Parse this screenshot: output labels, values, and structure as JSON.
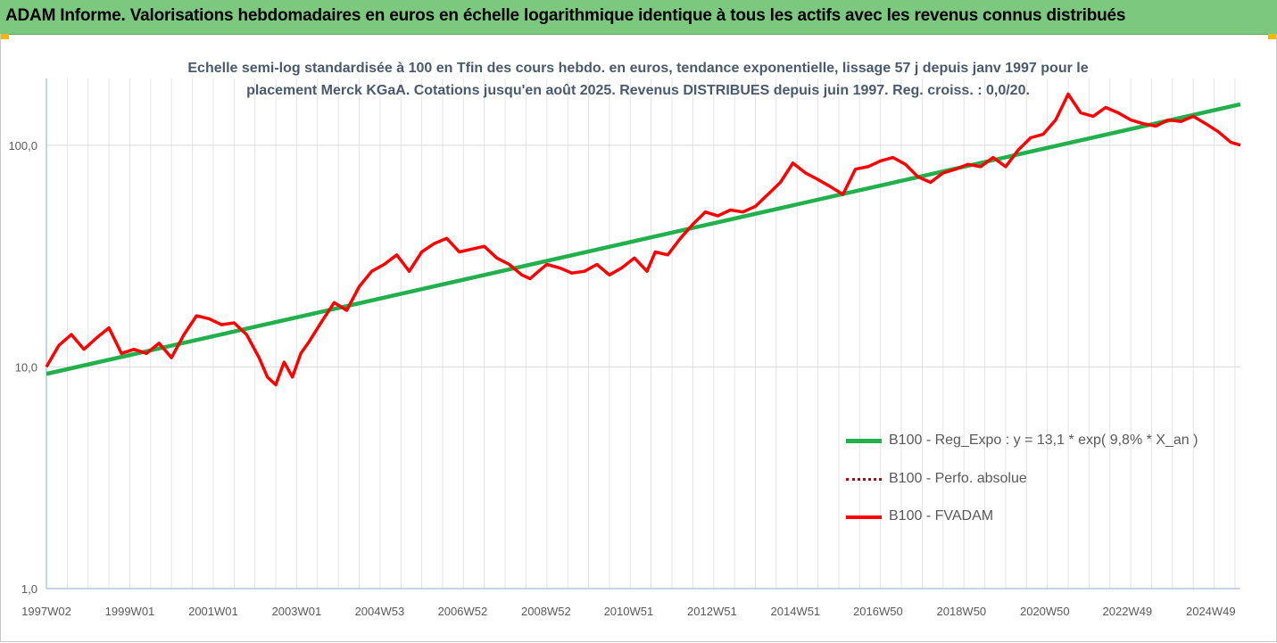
{
  "header": {
    "title": "ADAM Informe. Valorisations hebdomadaires en euros en échelle logarithmique identique à tous les actifs avec les revenus connus distribués"
  },
  "colors": {
    "banner": "#7dc87f",
    "corner_accent": "#f5b800",
    "regression": "#21b04b",
    "fvadam": "#ff0000",
    "perfo": "#c00000",
    "subtitle": "#4a5a6e",
    "grid": "#e3e3e3"
  },
  "chart_data": {
    "type": "line",
    "title_line1": "Echelle semi-log standardisée à 100 en Tfin des cours hebdo. en euros, tendance exponentielle, lissage 57 j depuis janv 1997 pour le",
    "title_line2": "placement Merck KGaA. Cotations jusqu'en août 2025. Revenus DISTRIBUES depuis juin 1997. Reg. croiss. : 0,0/20.",
    "y_scale": "log",
    "ylim": [
      1,
      200
    ],
    "y_ticks": [
      {
        "value": 1,
        "label": "1,0"
      },
      {
        "value": 10,
        "label": "10,0"
      },
      {
        "value": 100,
        "label": "100,0"
      }
    ],
    "xlim": [
      1997.0,
      2025.63
    ],
    "x_ticks": [
      {
        "value": 1997.0,
        "label": "1997W02"
      },
      {
        "value": 1999.0,
        "label": "1999W01"
      },
      {
        "value": 2001.0,
        "label": "2001W01"
      },
      {
        "value": 2003.0,
        "label": "2003W01"
      },
      {
        "value": 2004.99,
        "label": "2004W53"
      },
      {
        "value": 2006.98,
        "label": "2006W52"
      },
      {
        "value": 2008.98,
        "label": "2008W52"
      },
      {
        "value": 2010.96,
        "label": "2010W51"
      },
      {
        "value": 2012.96,
        "label": "2012W51"
      },
      {
        "value": 2014.96,
        "label": "2014W51"
      },
      {
        "value": 2016.94,
        "label": "2016W50"
      },
      {
        "value": 2018.94,
        "label": "2018W50"
      },
      {
        "value": 2020.94,
        "label": "2020W50"
      },
      {
        "value": 2022.92,
        "label": "2022W49"
      },
      {
        "value": 2024.92,
        "label": "2024W49"
      }
    ],
    "legend_position": "bottom-right",
    "series": [
      {
        "name": "B100 - Reg_Expo : y = 13,1 * exp( 9,8% *  X_an )",
        "style": "solid-thick",
        "x": [
          1997.0,
          2025.63
        ],
        "y": [
          9.3,
          153
        ]
      },
      {
        "name": "B100 - Perfo. absolue",
        "style": "dotted",
        "x": [],
        "y": []
      },
      {
        "name": "B100 - FVADAM",
        "style": "solid",
        "x": [
          1997.0,
          1997.3,
          1997.6,
          1997.9,
          1998.2,
          1998.5,
          1998.8,
          1999.1,
          1999.4,
          1999.7,
          2000.0,
          2000.3,
          2000.6,
          2000.9,
          2001.2,
          2001.5,
          2001.8,
          2002.1,
          2002.3,
          2002.5,
          2002.7,
          2002.9,
          2003.1,
          2003.3,
          2003.6,
          2003.9,
          2004.2,
          2004.5,
          2004.8,
          2005.1,
          2005.4,
          2005.7,
          2006.0,
          2006.3,
          2006.6,
          2006.9,
          2007.2,
          2007.5,
          2007.8,
          2008.1,
          2008.4,
          2008.6,
          2008.8,
          2009.0,
          2009.3,
          2009.6,
          2009.9,
          2010.2,
          2010.5,
          2010.8,
          2011.1,
          2011.4,
          2011.6,
          2011.9,
          2012.2,
          2012.5,
          2012.8,
          2013.1,
          2013.4,
          2013.7,
          2014.0,
          2014.3,
          2014.6,
          2014.9,
          2015.2,
          2015.5,
          2015.8,
          2016.1,
          2016.4,
          2016.7,
          2017.0,
          2017.3,
          2017.6,
          2017.9,
          2018.2,
          2018.5,
          2018.8,
          2019.1,
          2019.4,
          2019.7,
          2020.0,
          2020.3,
          2020.6,
          2020.9,
          2021.2,
          2021.5,
          2021.8,
          2022.1,
          2022.4,
          2022.7,
          2023.0,
          2023.3,
          2023.6,
          2023.9,
          2024.2,
          2024.5,
          2024.8,
          2025.1,
          2025.4,
          2025.63
        ],
        "y": [
          10.0,
          12.5,
          14.0,
          12.0,
          13.5,
          15.0,
          11.5,
          12.0,
          11.5,
          12.8,
          11.0,
          14.0,
          17.0,
          16.5,
          15.5,
          15.8,
          14.0,
          11.0,
          9.0,
          8.3,
          10.5,
          9.0,
          11.5,
          13.0,
          16.0,
          19.5,
          18.0,
          23.0,
          27.0,
          29.0,
          32.0,
          27.0,
          33.0,
          36.0,
          38.0,
          33.0,
          34.0,
          35.0,
          31.0,
          29.0,
          26.0,
          25.0,
          27.0,
          29.0,
          28.0,
          26.5,
          27.0,
          29.0,
          26.0,
          28.0,
          31.0,
          27.0,
          33.0,
          32.0,
          38.0,
          44.0,
          50.0,
          48.0,
          51.0,
          50.0,
          53.0,
          60.0,
          68.0,
          83.0,
          75.0,
          70.0,
          65.0,
          60.0,
          78.0,
          80.0,
          85.0,
          88.0,
          82.0,
          72.0,
          68.0,
          75.0,
          78.0,
          82.0,
          80.0,
          88.0,
          80.0,
          95.0,
          108.0,
          112.0,
          130.0,
          170.0,
          140.0,
          135.0,
          148.0,
          140.0,
          130.0,
          125.0,
          122.0,
          130.0,
          128.0,
          135.0,
          125.0,
          115.0,
          103.0,
          100.0
        ]
      }
    ]
  }
}
